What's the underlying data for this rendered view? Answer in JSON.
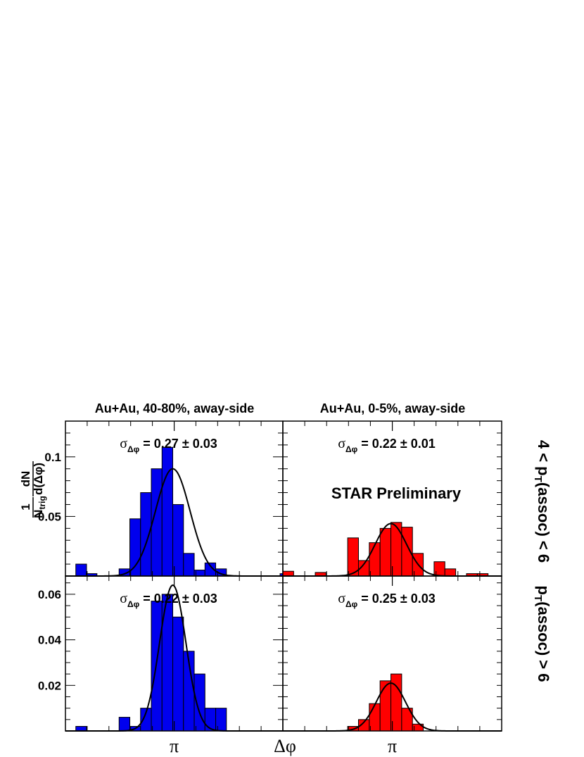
{
  "chart_data": {
    "type": "bar",
    "column_titles": [
      "Au+Au, 40-80%, away-side",
      "Au+Au, 0-5%, away-side"
    ],
    "row_labels": [
      "4 < p_T(assoc) < 6",
      "p_T(assoc) > 6"
    ],
    "xlabel": "Δφ",
    "xtick": "π",
    "ylabel": "1/N_trig dN/d(Δφ)",
    "watermark": "STAR Preliminary",
    "grid": false,
    "panels": [
      {
        "column": 0,
        "row": 0,
        "color": "#0000ee",
        "sigma_symbol": "σ",
        "sigma_sub": "Δφ",
        "sigma_text": "= 0.27 ± 0.03",
        "ylim": [
          0,
          0.13
        ],
        "yticks": [
          0.05,
          0.1
        ],
        "xlim": [
          0.0,
          6.28
        ],
        "bins": [
          [
            0.3,
            0.0125,
            0.01
          ],
          [
            0.6,
            0.0125,
            0.002
          ],
          [
            1.55,
            0.0125,
            0.006
          ],
          [
            1.86,
            0.0125,
            0.048
          ],
          [
            2.17,
            0.0125,
            0.07
          ],
          [
            2.48,
            0.0125,
            0.09
          ],
          [
            2.79,
            0.0125,
            0.108
          ],
          [
            3.1,
            0.0125,
            0.06
          ],
          [
            3.41,
            0.0125,
            0.019
          ],
          [
            3.72,
            0.0125,
            0.005
          ],
          [
            4.03,
            0.0125,
            0.011
          ],
          [
            4.34,
            0.0125,
            0.006
          ],
          [
            6.2,
            0.0125,
            0.002
          ]
        ],
        "bin_width": 0.31,
        "fit": {
          "amplitude": 0.09,
          "mean": 3.1,
          "sigma": 0.5
        }
      },
      {
        "column": 1,
        "row": 0,
        "color": "#ff0000",
        "sigma_symbol": "σ",
        "sigma_sub": "Δφ",
        "sigma_text": "= 0.22 ± 0.01",
        "ylim": [
          0,
          0.13
        ],
        "xlim": [
          0.0,
          6.28
        ],
        "bins": [
          [
            0.0,
            0.0125,
            0.004
          ],
          [
            0.93,
            0.0125,
            0.003
          ],
          [
            1.86,
            0.0125,
            0.032
          ],
          [
            2.17,
            0.0125,
            0.013
          ],
          [
            2.48,
            0.0125,
            0.028
          ],
          [
            2.79,
            0.0125,
            0.04
          ],
          [
            3.1,
            0.0125,
            0.045
          ],
          [
            3.41,
            0.0125,
            0.041
          ],
          [
            3.72,
            0.0125,
            0.019
          ],
          [
            4.34,
            0.0125,
            0.012
          ],
          [
            4.65,
            0.0125,
            0.006
          ],
          [
            5.27,
            0.0125,
            0.002
          ],
          [
            5.58,
            0.0125,
            0.002
          ]
        ],
        "bin_width": 0.31,
        "fit": {
          "amplitude": 0.044,
          "mean": 3.1,
          "sigma": 0.45
        }
      },
      {
        "column": 0,
        "row": 1,
        "color": "#0000ee",
        "sigma_symbol": "σ",
        "sigma_sub": "Δφ",
        "sigma_text": "= 0.22 ± 0.03",
        "ylim": [
          0,
          0.068
        ],
        "yticks": [
          0.02,
          0.04,
          0.06
        ],
        "xlim": [
          0.0,
          6.28
        ],
        "bins": [
          [
            0.3,
            0.0125,
            0.002
          ],
          [
            1.55,
            0.0125,
            0.006
          ],
          [
            1.86,
            0.0125,
            0.002
          ],
          [
            2.17,
            0.0125,
            0.01
          ],
          [
            2.48,
            0.0125,
            0.057
          ],
          [
            2.79,
            0.0125,
            0.06
          ],
          [
            3.1,
            0.0125,
            0.05
          ],
          [
            3.41,
            0.0125,
            0.035
          ],
          [
            3.72,
            0.0125,
            0.025
          ],
          [
            4.03,
            0.0125,
            0.01
          ],
          [
            4.34,
            0.0125,
            0.01
          ]
        ],
        "bin_width": 0.31,
        "fit": {
          "amplitude": 0.064,
          "mean": 3.1,
          "sigma": 0.38
        }
      },
      {
        "column": 1,
        "row": 1,
        "color": "#ff0000",
        "sigma_symbol": "σ",
        "sigma_sub": "Δφ",
        "sigma_text": "= 0.25 ± 0.03",
        "ylim": [
          0,
          0.068
        ],
        "xlim": [
          0.0,
          6.28
        ],
        "bins": [
          [
            1.86,
            0.0125,
            0.002
          ],
          [
            2.17,
            0.0125,
            0.005
          ],
          [
            2.48,
            0.0125,
            0.012
          ],
          [
            2.79,
            0.0125,
            0.022
          ],
          [
            3.1,
            0.0125,
            0.025
          ],
          [
            3.41,
            0.0125,
            0.01
          ],
          [
            3.72,
            0.0125,
            0.003
          ]
        ],
        "bin_width": 0.31,
        "fit": {
          "amplitude": 0.021,
          "mean": 3.1,
          "sigma": 0.42
        }
      }
    ]
  }
}
